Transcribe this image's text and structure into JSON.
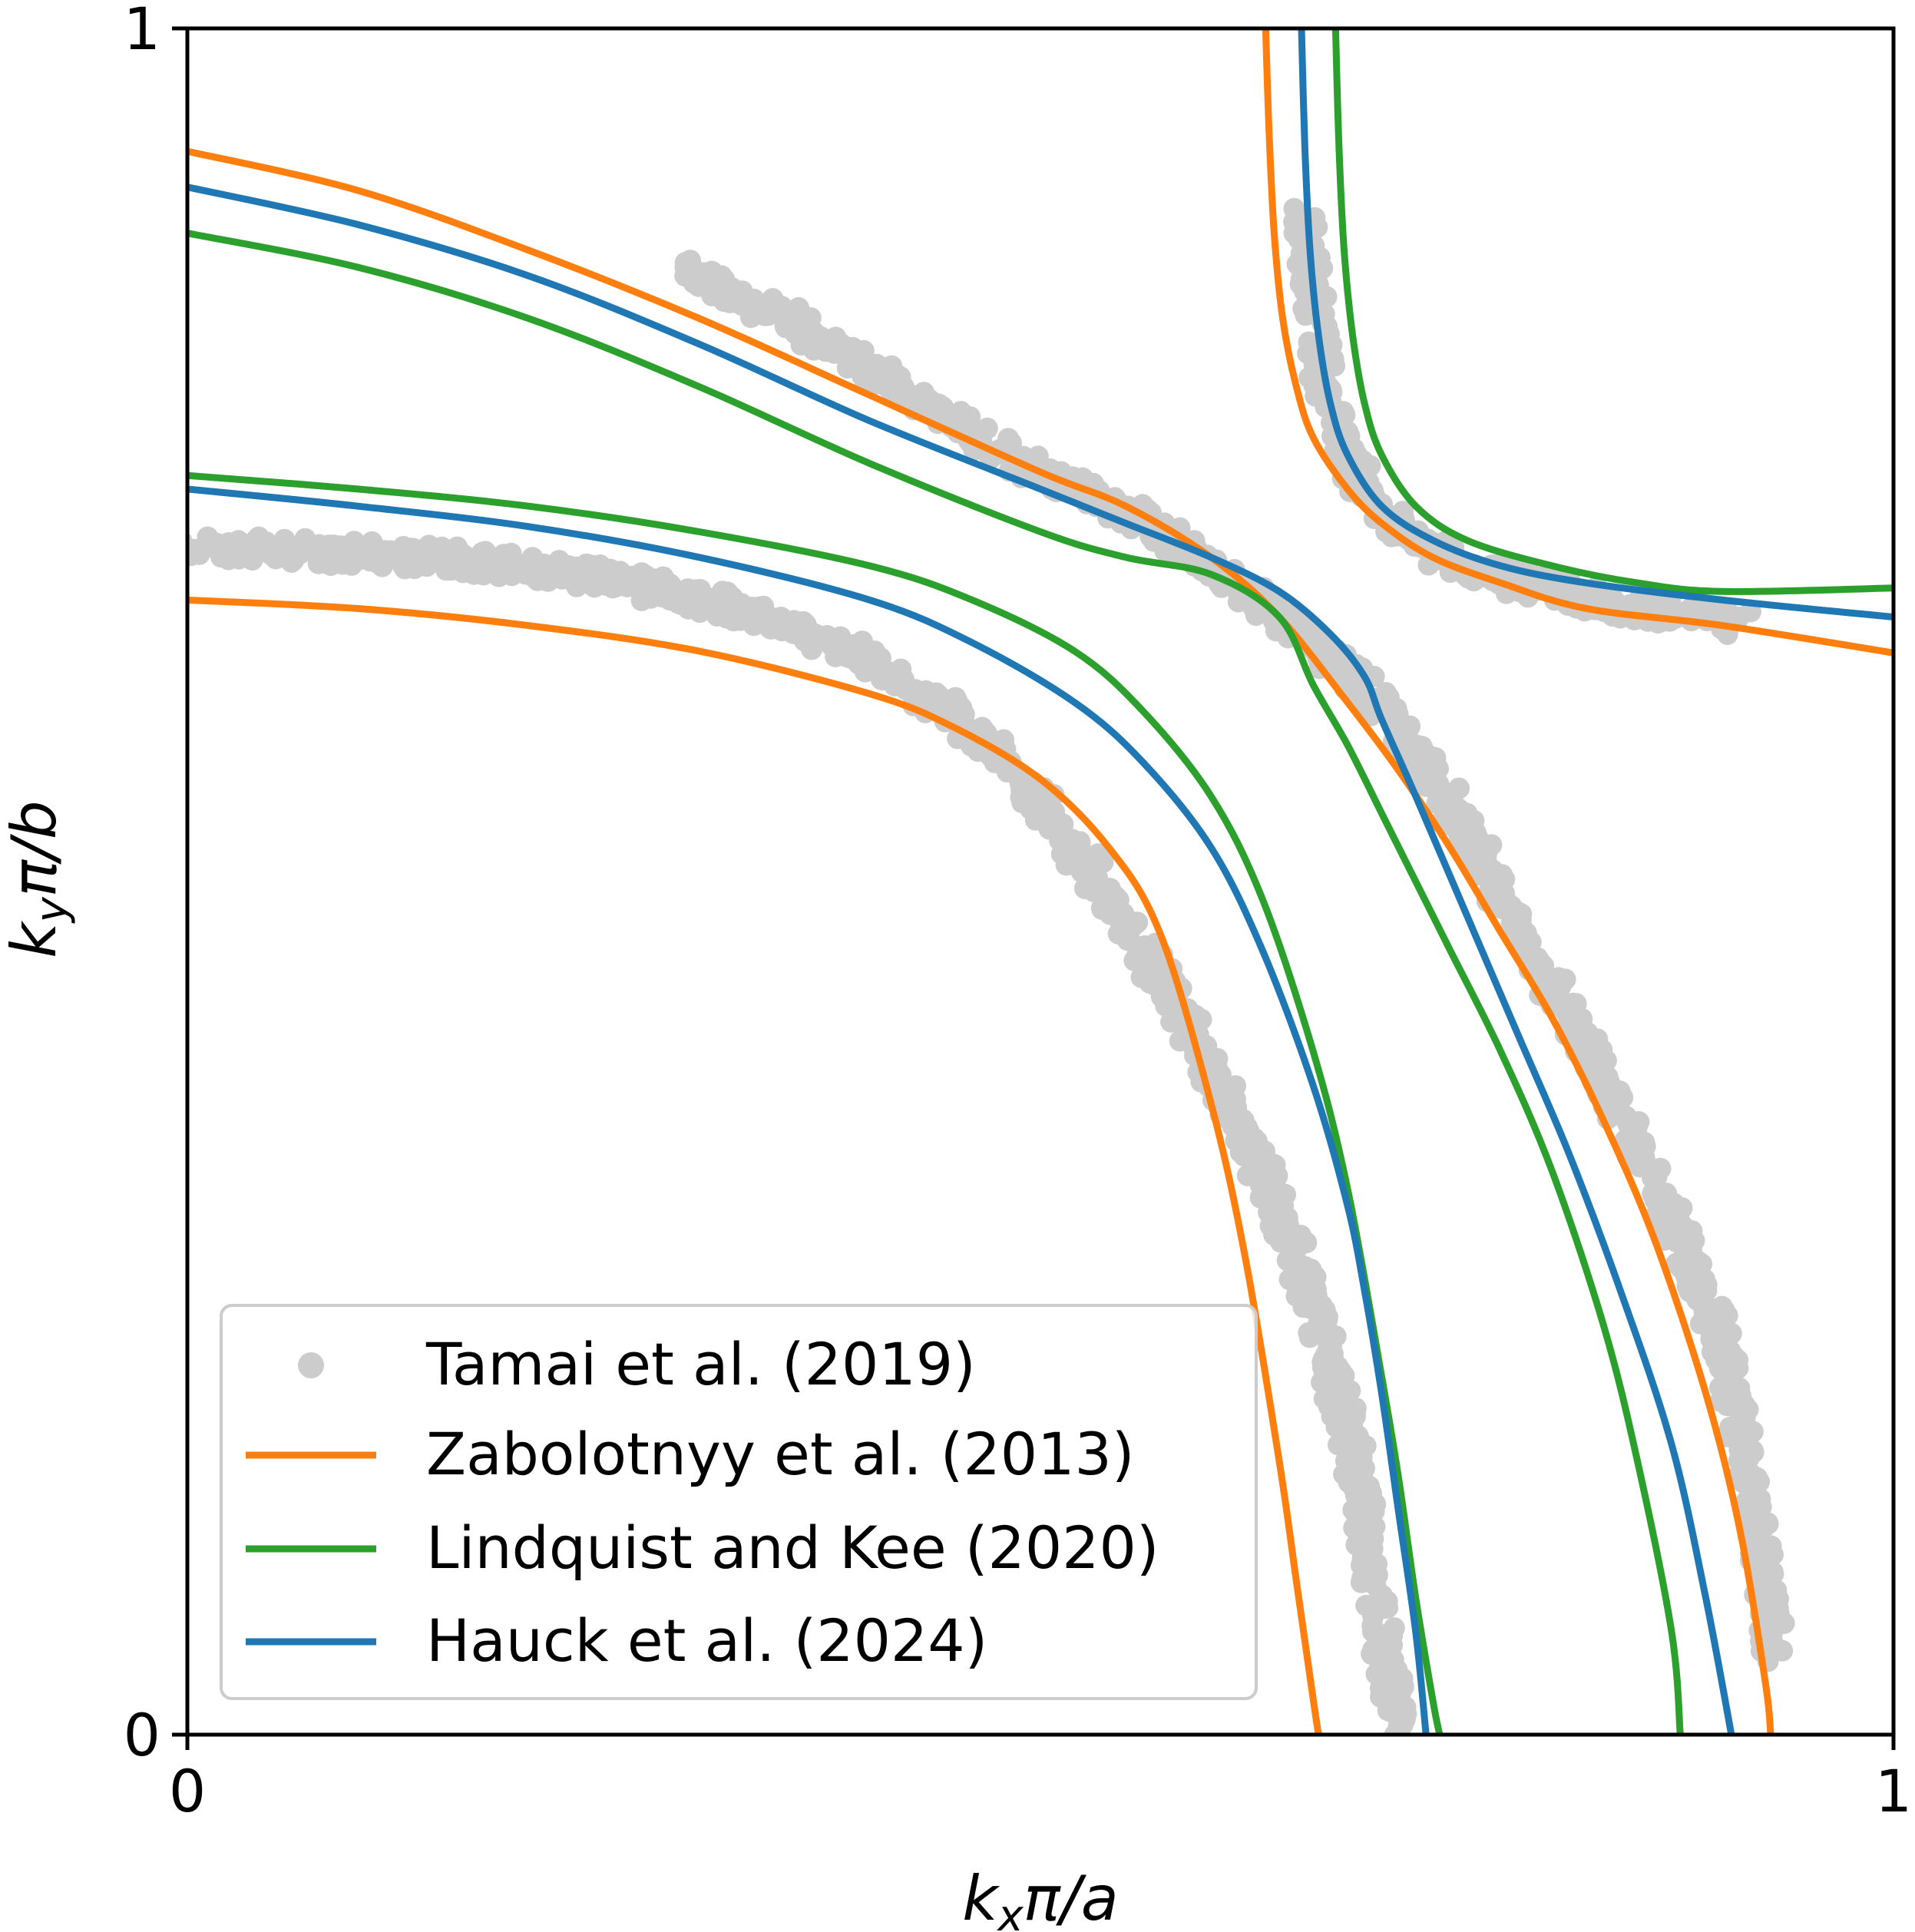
{
  "chart_data": {
    "type": "line",
    "title": "",
    "xlabel": "k_xπ/a",
    "ylabel": "k_yπ/b",
    "xlabel_parts": {
      "k": "k",
      "sub": "x",
      "rest": "π/a"
    },
    "ylabel_parts": {
      "k": "k",
      "sub": "y",
      "rest": "π/b"
    },
    "xlim": [
      0,
      1
    ],
    "ylim": [
      0,
      1
    ],
    "xticks": [
      "0",
      "1"
    ],
    "yticks": [
      "0",
      "1"
    ],
    "grid": false,
    "legend_position": "lower-left",
    "scatter_series": {
      "name": "Tamai et al. (2019)",
      "color": "#cccccc",
      "branches": [
        {
          "x": [
            0.0,
            0.04,
            0.08,
            0.12,
            0.16,
            0.2,
            0.24,
            0.28,
            0.32,
            0.36,
            0.4,
            0.44,
            0.48,
            0.52,
            0.56,
            0.6,
            0.63,
            0.65,
            0.67,
            0.68,
            0.69,
            0.695,
            0.7,
            0.705,
            0.71,
            0.712
          ],
          "y": [
            0.695,
            0.695,
            0.693,
            0.691,
            0.688,
            0.684,
            0.678,
            0.67,
            0.66,
            0.647,
            0.628,
            0.604,
            0.57,
            0.52,
            0.46,
            0.39,
            0.33,
            0.28,
            0.22,
            0.18,
            0.13,
            0.09,
            0.06,
            0.03,
            0.01,
            0.0
          ]
        },
        {
          "x": [
            0.29,
            0.32,
            0.36,
            0.4,
            0.44,
            0.48,
            0.52,
            0.56,
            0.6,
            0.64,
            0.68,
            0.72,
            0.74,
            0.76,
            0.78,
            0.8,
            0.82,
            0.84,
            0.86,
            0.88,
            0.9,
            0.91,
            0.92,
            0.93
          ],
          "y": [
            0.86,
            0.845,
            0.825,
            0.8,
            0.775,
            0.75,
            0.73,
            0.71,
            0.685,
            0.655,
            0.625,
            0.578,
            0.545,
            0.51,
            0.475,
            0.44,
            0.4,
            0.36,
            0.32,
            0.28,
            0.23,
            0.18,
            0.12,
            0.05
          ]
        },
        {
          "x": [
            0.655,
            0.66,
            0.665,
            0.67,
            0.68,
            0.69,
            0.7,
            0.72,
            0.75,
            0.8,
            0.85,
            0.9,
            0.91
          ],
          "y": [
            0.89,
            0.84,
            0.8,
            0.775,
            0.75,
            0.73,
            0.715,
            0.7,
            0.685,
            0.67,
            0.66,
            0.655,
            0.652
          ]
        }
      ]
    },
    "series": [
      {
        "name": "Zabolotnyy et al. (2013)",
        "color": "#ff7f0e",
        "branches": [
          {
            "x": [
              0.0,
              0.1,
              0.2,
              0.3,
              0.4,
              0.45,
              0.5,
              0.54,
              0.57,
              0.6,
              0.62,
              0.64,
              0.65,
              0.66,
              0.663
            ],
            "y": [
              0.665,
              0.66,
              0.65,
              0.635,
              0.61,
              0.59,
              0.56,
              0.52,
              0.47,
              0.37,
              0.28,
              0.16,
              0.09,
              0.02,
              0.0
            ]
          },
          {
            "x": [
              0.0,
              0.1,
              0.2,
              0.3,
              0.4,
              0.5,
              0.55,
              0.6,
              0.64,
              0.68,
              0.71,
              0.74,
              0.77,
              0.8,
              0.83,
              0.86,
              0.89,
              0.91,
              0.925,
              0.928
            ],
            "y": [
              0.928,
              0.905,
              0.87,
              0.83,
              0.785,
              0.74,
              0.72,
              0.69,
              0.655,
              0.605,
              0.565,
              0.52,
              0.47,
              0.42,
              0.36,
              0.29,
              0.2,
              0.12,
              0.03,
              0.0
            ]
          },
          {
            "x": [
              0.632,
              0.634,
              0.637,
              0.642,
              0.65,
              0.66,
              0.68,
              0.7,
              0.73,
              0.77,
              0.82,
              0.9,
              1.0
            ],
            "y": [
              1.0,
              0.94,
              0.88,
              0.83,
              0.79,
              0.76,
              0.73,
              0.71,
              0.69,
              0.675,
              0.66,
              0.65,
              0.634
            ]
          }
        ]
      },
      {
        "name": "Lindquist and Kee (2020)",
        "color": "#2ca02c",
        "branches": [
          {
            "x": [
              0.0,
              0.1,
              0.2,
              0.3,
              0.4,
              0.46,
              0.52,
              0.56,
              0.6,
              0.63,
              0.66,
              0.68,
              0.7,
              0.71,
              0.72,
              0.73,
              0.734
            ],
            "y": [
              0.738,
              0.73,
              0.72,
              0.705,
              0.685,
              0.665,
              0.635,
              0.6,
              0.55,
              0.49,
              0.4,
              0.32,
              0.21,
              0.15,
              0.08,
              0.02,
              0.0
            ]
          },
          {
            "x": [
              0.0,
              0.1,
              0.2,
              0.3,
              0.4,
              0.5,
              0.55,
              0.6,
              0.64,
              0.66,
              0.68,
              0.7,
              0.72,
              0.74,
              0.77,
              0.8,
              0.83,
              0.85,
              0.87,
              0.875
            ],
            "y": [
              0.88,
              0.86,
              0.83,
              0.79,
              0.745,
              0.705,
              0.69,
              0.68,
              0.655,
              0.615,
              0.58,
              0.54,
              0.5,
              0.46,
              0.4,
              0.33,
              0.24,
              0.16,
              0.06,
              0.0
            ]
          },
          {
            "x": [
              0.673,
              0.675,
              0.678,
              0.683,
              0.69,
              0.7,
              0.72,
              0.75,
              0.8,
              0.85,
              0.9,
              1.0
            ],
            "y": [
              1.0,
              0.93,
              0.87,
              0.82,
              0.78,
              0.75,
              0.72,
              0.7,
              0.685,
              0.675,
              0.67,
              0.672
            ]
          }
        ]
      },
      {
        "name": "Hauck et al. (2024)",
        "color": "#1f77b4",
        "branches": [
          {
            "x": [
              0.0,
              0.1,
              0.2,
              0.3,
              0.4,
              0.46,
              0.52,
              0.56,
              0.6,
              0.63,
              0.66,
              0.68,
              0.69,
              0.7,
              0.71,
              0.72,
              0.726
            ],
            "y": [
              0.73,
              0.72,
              0.708,
              0.69,
              0.665,
              0.64,
              0.605,
              0.57,
              0.52,
              0.46,
              0.38,
              0.31,
              0.26,
              0.2,
              0.13,
              0.06,
              0.0
            ]
          },
          {
            "x": [
              0.0,
              0.1,
              0.2,
              0.3,
              0.4,
              0.5,
              0.55,
              0.6,
              0.64,
              0.67,
              0.69,
              0.7,
              0.72,
              0.75,
              0.78,
              0.81,
              0.84,
              0.87,
              0.89,
              0.905
            ],
            "y": [
              0.907,
              0.885,
              0.855,
              0.815,
              0.77,
              0.73,
              0.71,
              0.69,
              0.67,
              0.645,
              0.62,
              0.595,
              0.55,
              0.48,
              0.41,
              0.34,
              0.26,
              0.17,
              0.08,
              0.0
            ]
          },
          {
            "x": [
              0.653,
              0.655,
              0.658,
              0.663,
              0.67,
              0.68,
              0.7,
              0.73,
              0.77,
              0.82,
              0.9,
              1.0
            ],
            "y": [
              1.0,
              0.93,
              0.87,
              0.82,
              0.78,
              0.75,
              0.72,
              0.7,
              0.685,
              0.675,
              0.665,
              0.655
            ]
          }
        ]
      }
    ],
    "legend_order": [
      "Tamai et al. (2019)",
      "Zabolotnyy et al. (2013)",
      "Lindquist and Kee (2020)",
      "Hauck et al. (2024)"
    ]
  }
}
